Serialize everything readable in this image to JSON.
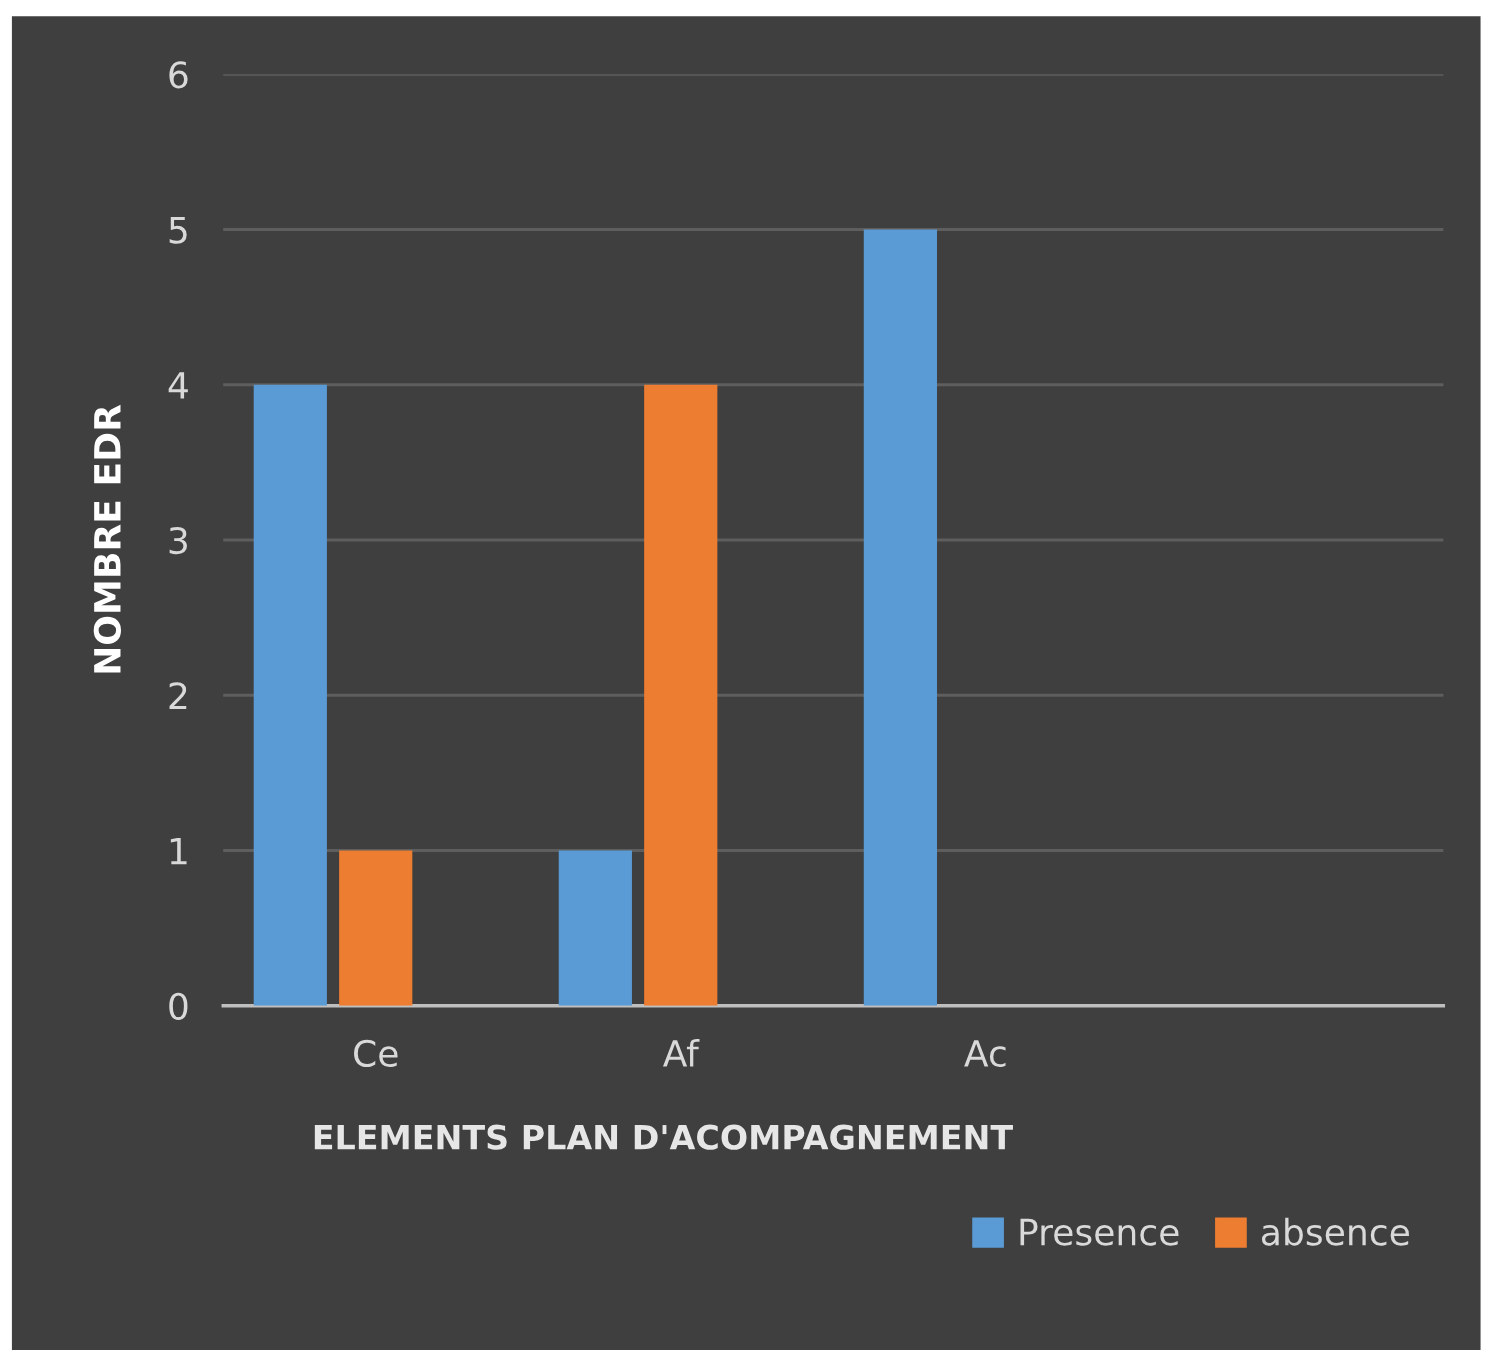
{
  "chart_data": {
    "type": "bar",
    "xlabel": "ELEMENTS PLAN D'ACOMPAGNEMENT",
    "ylabel": "NOMBRE EDR",
    "categories": [
      "Ce",
      "Af",
      "Ac",
      null
    ],
    "series": [
      {
        "name": "Presence",
        "color": "#5b9bd5",
        "values": [
          4,
          1,
          5,
          null
        ]
      },
      {
        "name": "absence",
        "color": "#ed7d31",
        "values": [
          1,
          4,
          null,
          null
        ]
      }
    ],
    "ylim": [
      0,
      6
    ],
    "yticks": [
      0,
      1,
      2,
      3,
      4,
      5,
      6
    ],
    "grid": "y",
    "legend": "bottom right"
  }
}
